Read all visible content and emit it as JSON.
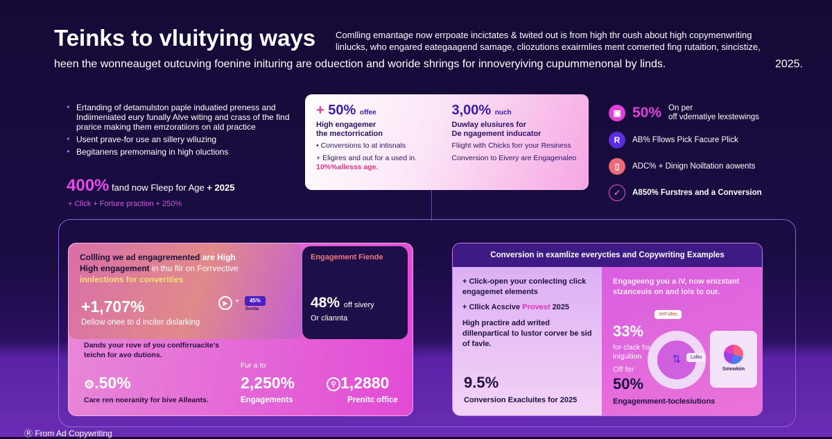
{
  "header": {
    "title": "Teinks to vluitying ways",
    "subtitle_1": "Comlling emantage now errpoate incictates & twited out is from high thr oush about high copymenwriting",
    "subtitle_2": "linlucks, who engared eategaagend samage, cliozutions exairmlies ment  comerted fing rutaition, sincistize,",
    "line": "heen the wonneauget outcuving foenine inituring are oduection and  woride shrings for innoveryiving cupummenonal by linds.",
    "year": "2025."
  },
  "left_list": {
    "items": [
      "Ertanding of detamulston paple induatied preness and Indiimeniated eury funally Alve witing and crass of the find prarice making them emzoratiiors on ald practice",
      "Usent prave-for use an sillery wlluzing",
      "Begitanens premomaing in high oluctions"
    ],
    "stat_value": "400%",
    "stat_text": "fand now Fleep for Age",
    "stat_suffix": "+ 2025",
    "click_line": "+ Click + Forture praction + 250%"
  },
  "center_card": {
    "left": {
      "plus": "+",
      "value": "50%",
      "unit": "offee",
      "heading_1": "High engagemer",
      "heading_2": "the mectorrication",
      "bullets": [
        "Conversions to at intisnals",
        "Eligires and out for a used in."
      ],
      "highlight": "10%%allesss age",
      "end": "."
    },
    "right": {
      "value": "3,00%",
      "unit": "nuch",
      "heading_1": "Duwlay elusiures for",
      "heading_2": "De ngagement inducator",
      "lines": [
        "Fliight with Chicks forr your Resiness",
        "Conversion to Eivery are Engagenaleo"
      ]
    }
  },
  "right_list": {
    "items": [
      {
        "icon": "monitor-icon",
        "value": "50%",
        "text_1": "On per",
        "text_2": "off vdematiye lexstewings",
        "color": "#e040d8"
      },
      {
        "icon": "r-letter-icon",
        "glyph": "R",
        "text": "AB% Fllows Pick Facure Plick",
        "color": "#5a2ee0"
      },
      {
        "icon": "bookmark-icon",
        "text": "ADC% + Dinign Noiltation aowents",
        "color": "#ec6a7a"
      },
      {
        "icon": "check-circle-icon",
        "text": "A850% Furstres and a Conversion",
        "color": "#e060c0"
      }
    ]
  },
  "left_panel": {
    "intro_dark": "Collling we ad engagremented",
    "intro_light": "are High",
    "intro_2_dark": "High  engagement",
    "intro_2_rest": "in thu flir on Forrvective",
    "intro_3": "innlections for converities",
    "stat": "+1,707%",
    "stat_text": "Dellow onee to d inciter dislarking",
    "badge": "45%",
    "badge_label": "Devilla",
    "dark_title": "Engagement Fiende",
    "dark_value": "48%",
    "dark_unit": "off sivery",
    "dark_text": "Or cliannta",
    "mid_text": "Dands your rove of you conlfirruacite's teichn for avo dutions.",
    "s1_value": ".50%",
    "s1_label": "Care ren noeranity for bive Alleants.",
    "s2_pre": "Fur a to",
    "s2_value": "2,250%",
    "s2_label": "Engagements",
    "s3_value": "1,2880",
    "s3_label": "Prenitc office"
  },
  "right_panel": {
    "title": "Conversion in examlize everycties and Copywriting Examples",
    "b1": "+ Click-open your conlecting click engagemet elements",
    "b2_pre": "+ Cllick Acscive",
    "b2_hl": "Provest",
    "b2_post": "2025",
    "para": "High practire add writed dillenpartical to lustor corver be sid of favle.",
    "stat": "9.5%",
    "stat_label": "Conversion Exacluites for 2025",
    "r_text": "Engageeng you a iV, now enizstant stzanceuis on and lois to our.",
    "r_stat": "33%",
    "r_stat_text": "for clack for inigultion",
    "r_pre": "Off fer",
    "r_value": "50%",
    "r_label": "Engagemment-toclesiutions",
    "chip_1": "VeFulles",
    "chip_2": "Lolks",
    "card_name": "Smewkim"
  },
  "footer": {
    "text": "From Ad Copywriting"
  }
}
